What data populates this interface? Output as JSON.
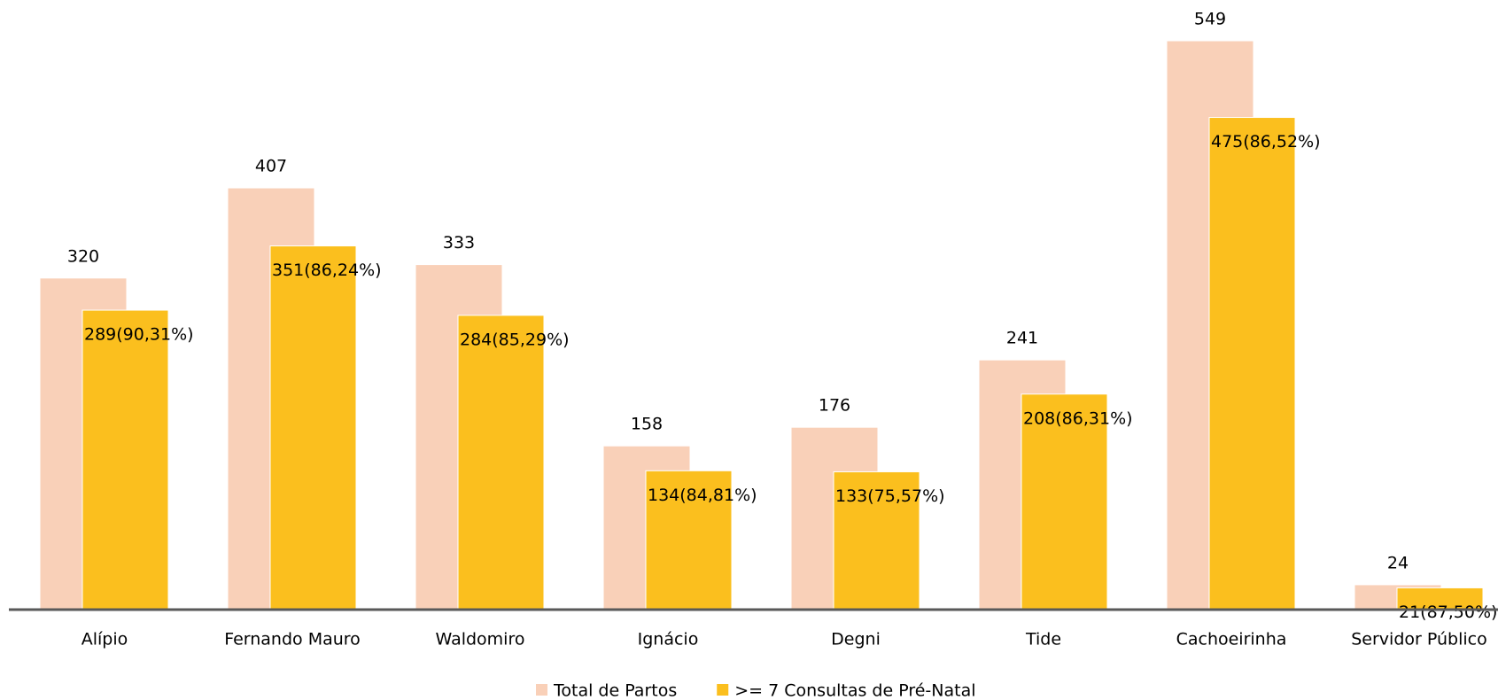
{
  "chart_data": {
    "type": "bar",
    "categories": [
      "Alípio",
      "Fernando Mauro",
      "Waldomiro",
      "Ignácio",
      "Degni",
      "Tide",
      "Cachoeirinha",
      "Servidor Público"
    ],
    "series": [
      {
        "name": "Total de Partos",
        "color": "#f9d0b8",
        "values": [
          320,
          407,
          333,
          158,
          176,
          241,
          549,
          24
        ]
      },
      {
        "name": ">= 7 Consultas de Pré-Natal",
        "color": "#fbbf1e",
        "values": [
          289,
          351,
          284,
          134,
          133,
          208,
          475,
          21
        ],
        "value_labels": [
          "289(90,31%)",
          "351(86,24%)",
          "284(85,29%)",
          "134(84,81%)",
          "133(75,57%)",
          "208(86,31%)",
          "475(86,52%)",
          "21(87,50%)"
        ]
      }
    ],
    "legend": "bottom"
  }
}
